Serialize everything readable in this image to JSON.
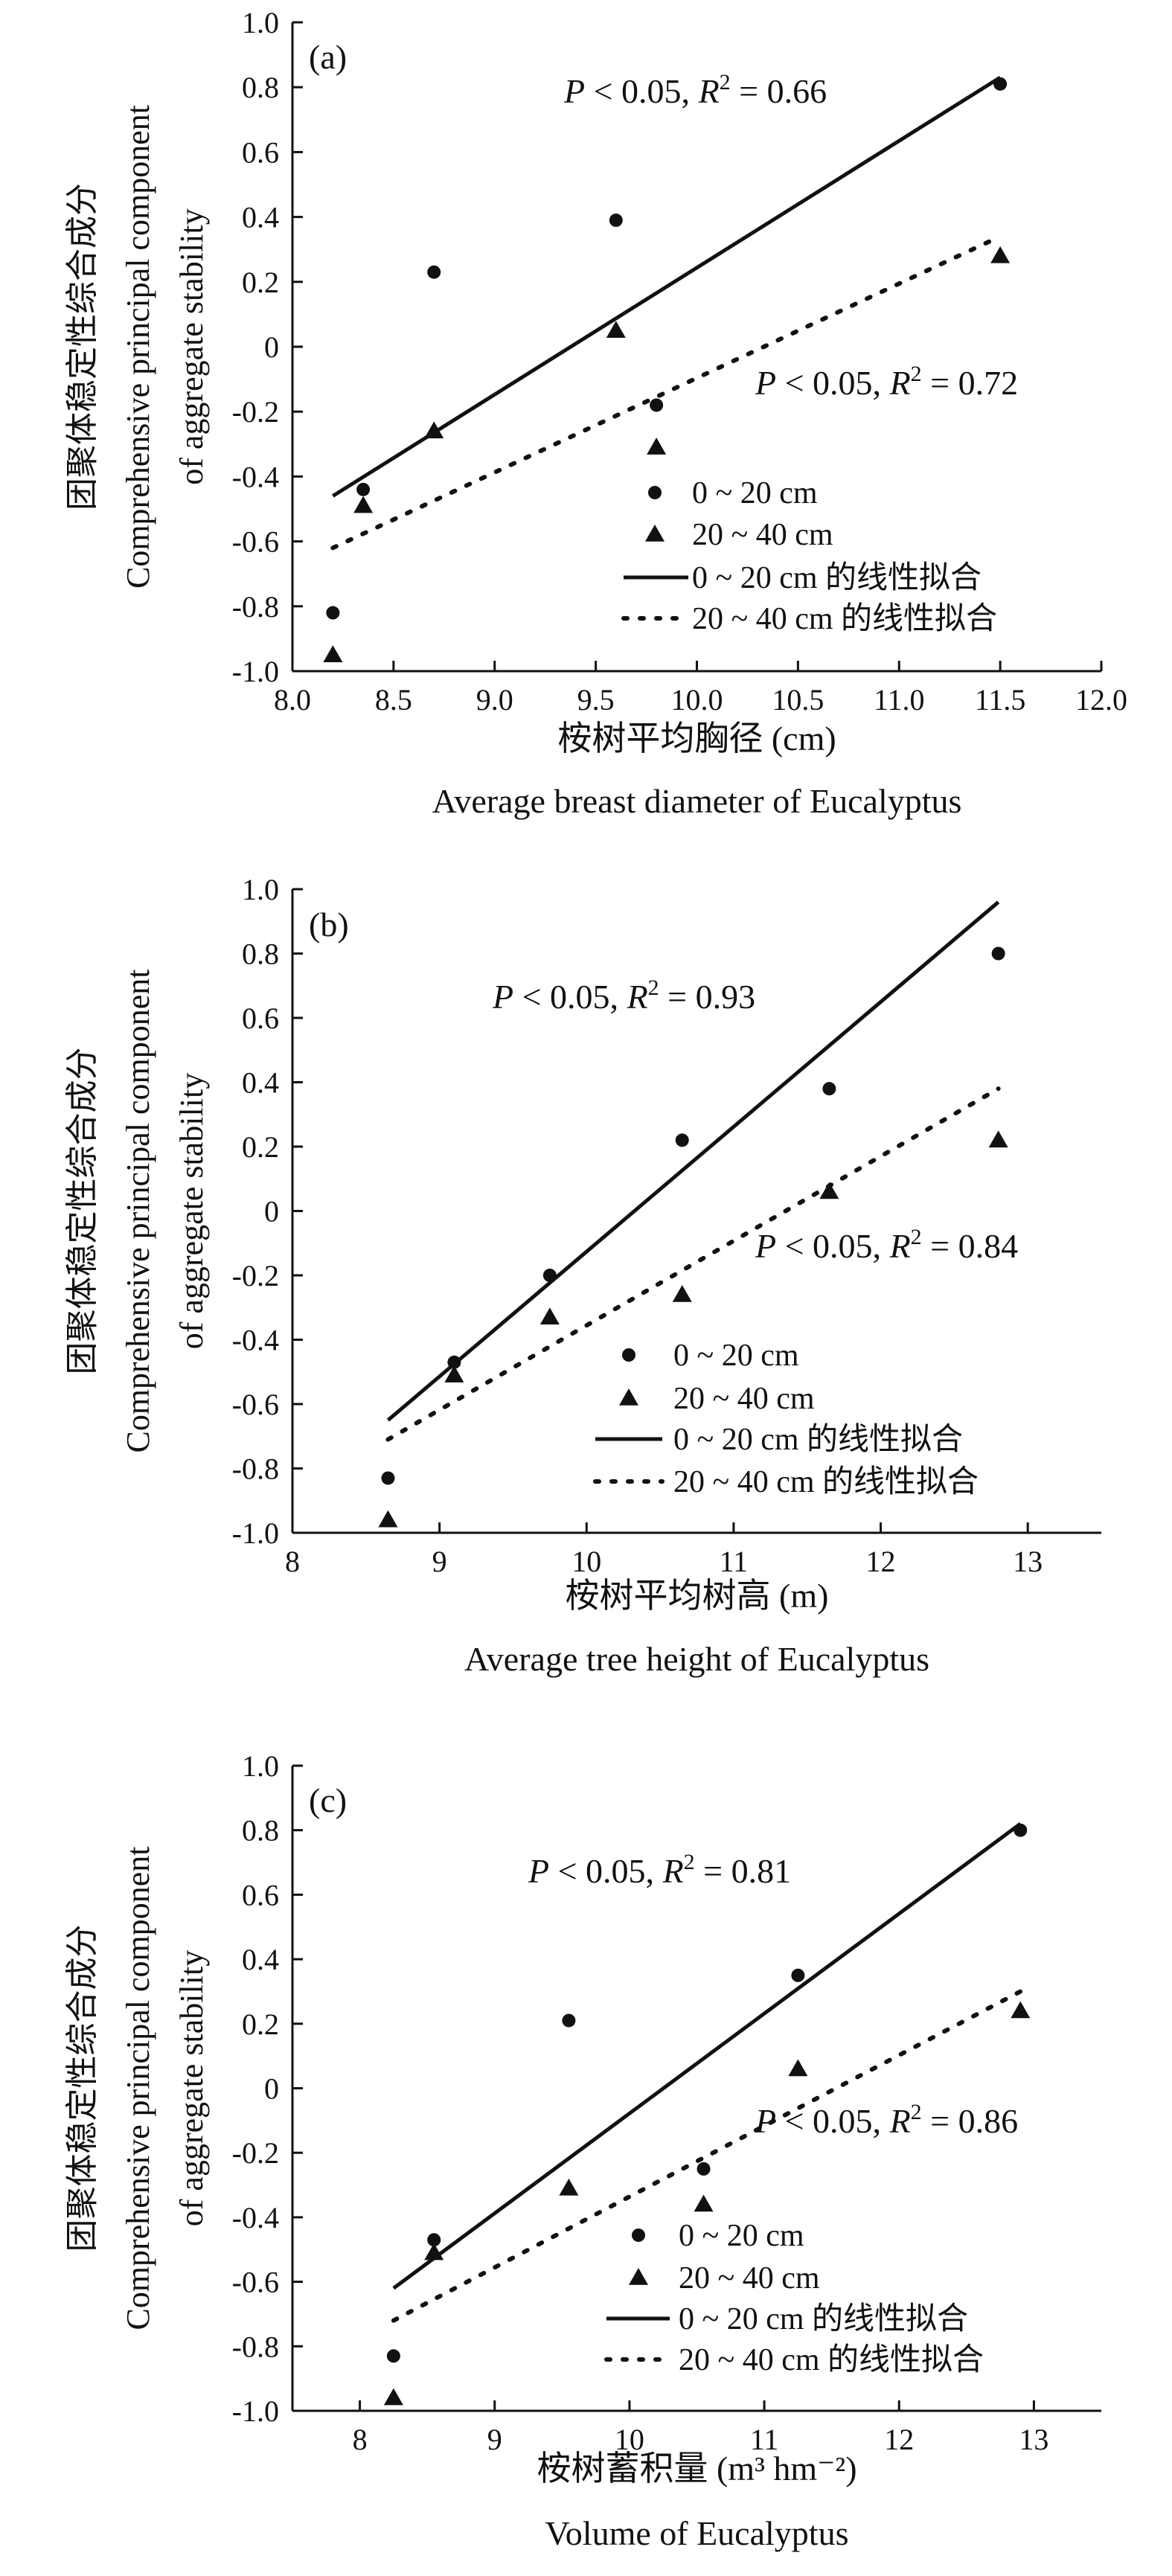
{
  "chart_data": [
    {
      "type": "scatter",
      "panel_label": "(a)",
      "xlabel_cn": "桉树平均胸径 (cm)",
      "xlabel_en": "Average breast diameter of Eucalyptus",
      "ylabel_cn": "团聚体稳定性综合成分",
      "ylabel_en_1": "Comprehensive principal component",
      "ylabel_en_2": "of aggregate stability",
      "xlim": [
        8.0,
        12.0
      ],
      "ylim": [
        -1.0,
        1.0
      ],
      "x_ticks": [
        "8.0",
        "8.5",
        "9.0",
        "9.5",
        "10.0",
        "10.5",
        "11.0",
        "11.5",
        "12.0"
      ],
      "y_ticks": [
        "1.0",
        "0.8",
        "0.6",
        "0.4",
        "0.2",
        "0",
        "-0.2",
        "-0.4",
        "-0.6",
        "-0.8",
        "-1.0"
      ],
      "series": [
        {
          "name": "0 ~ 20 cm",
          "marker": "circle",
          "points": [
            [
              8.2,
              -0.82
            ],
            [
              8.35,
              -0.44
            ],
            [
              8.7,
              0.23
            ],
            [
              9.6,
              0.39
            ],
            [
              9.8,
              -0.18
            ],
            [
              11.5,
              0.81
            ]
          ]
        },
        {
          "name": "20 ~ 40 cm",
          "marker": "triangle",
          "points": [
            [
              8.2,
              -0.95
            ],
            [
              8.35,
              -0.49
            ],
            [
              8.7,
              -0.26
            ],
            [
              9.6,
              0.05
            ],
            [
              9.8,
              -0.31
            ],
            [
              11.5,
              0.28
            ]
          ]
        }
      ],
      "fits": [
        {
          "name": "0 ~ 20 cm 的线性拟合",
          "style": "solid",
          "from": [
            8.2,
            -0.46
          ],
          "to": [
            11.5,
            0.83
          ]
        },
        {
          "name": "20 ~ 40 cm 的线性拟合",
          "style": "dotted",
          "from": [
            8.2,
            -0.62
          ],
          "to": [
            11.5,
            0.34
          ]
        }
      ],
      "annotations": [
        {
          "p": "P",
          "mid": " < 0.05, ",
          "r": "R",
          "sup": "2",
          "val": " = 0.66"
        },
        {
          "p": "P",
          "mid": " < 0.05, ",
          "r": "R",
          "sup": "2",
          "val": " = 0.72"
        }
      ]
    },
    {
      "type": "scatter",
      "panel_label": "(b)",
      "xlabel_cn": "桉树平均树高 (m)",
      "xlabel_en": "Average tree height of Eucalyptus",
      "ylabel_cn": "团聚体稳定性综合成分",
      "ylabel_en_1": "Comprehensive principal component",
      "ylabel_en_2": "of aggregate stability",
      "xlim": [
        8,
        13.5
      ],
      "ylim": [
        -1.0,
        1.0
      ],
      "x_ticks": [
        "8",
        "9",
        "10",
        "11",
        "12",
        "13"
      ],
      "y_ticks": [
        "1.0",
        "0.8",
        "0.6",
        "0.4",
        "0.2",
        "0",
        "-0.2",
        "-0.4",
        "-0.6",
        "-0.8",
        "-1.0"
      ],
      "series": [
        {
          "name": "0 ~ 20 cm",
          "marker": "circle",
          "points": [
            [
              8.65,
              -0.83
            ],
            [
              9.1,
              -0.47
            ],
            [
              9.75,
              -0.2
            ],
            [
              10.65,
              0.22
            ],
            [
              11.65,
              0.38
            ],
            [
              12.8,
              0.8
            ]
          ]
        },
        {
          "name": "20 ~ 40 cm",
          "marker": "triangle",
          "points": [
            [
              8.65,
              -0.96
            ],
            [
              9.1,
              -0.51
            ],
            [
              9.75,
              -0.33
            ],
            [
              10.65,
              -0.26
            ],
            [
              11.65,
              0.06
            ],
            [
              12.8,
              0.22
            ]
          ]
        }
      ],
      "fits": [
        {
          "name": "0 ~ 20 cm 的线性拟合",
          "style": "solid",
          "from": [
            8.65,
            -0.65
          ],
          "to": [
            12.8,
            0.96
          ]
        },
        {
          "name": "20 ~ 40 cm 的线性拟合",
          "style": "dotted",
          "from": [
            8.65,
            -0.71
          ],
          "to": [
            12.8,
            0.38
          ]
        }
      ],
      "annotations": [
        {
          "p": "P",
          "mid": " < 0.05, ",
          "r": "R",
          "sup": "2",
          "val": " = 0.93"
        },
        {
          "p": "P",
          "mid": " < 0.05, ",
          "r": "R",
          "sup": "2",
          "val": " = 0.84"
        }
      ]
    },
    {
      "type": "scatter",
      "panel_label": "(c)",
      "xlabel_cn": "桉树蓄积量 (m³ hm⁻²)",
      "xlabel_en": "Volume of Eucalyptus",
      "ylabel_cn": "团聚体稳定性综合成分",
      "ylabel_en_1": "Comprehensive principal component",
      "ylabel_en_2": "of aggregate stability",
      "xlim": [
        7.5,
        13.5
      ],
      "ylim": [
        -1.0,
        1.0
      ],
      "x_ticks": [
        "8",
        "9",
        "10",
        "11",
        "12",
        "13"
      ],
      "y_ticks": [
        "1.0",
        "0.8",
        "0.6",
        "0.4",
        "0.2",
        "0",
        "-0.2",
        "-0.4",
        "-0.6",
        "-0.8",
        "-1.0"
      ],
      "series": [
        {
          "name": "0 ~ 20 cm",
          "marker": "circle",
          "points": [
            [
              8.25,
              -0.83
            ],
            [
              8.55,
              -0.47
            ],
            [
              9.55,
              0.21
            ],
            [
              10.55,
              -0.25
            ],
            [
              11.25,
              0.35
            ],
            [
              12.9,
              0.8
            ]
          ]
        },
        {
          "name": "20 ~ 40 cm",
          "marker": "triangle",
          "points": [
            [
              8.25,
              -0.96
            ],
            [
              8.55,
              -0.51
            ],
            [
              9.55,
              -0.31
            ],
            [
              10.55,
              -0.36
            ],
            [
              11.25,
              0.06
            ],
            [
              12.9,
              0.24
            ]
          ]
        }
      ],
      "fits": [
        {
          "name": "0 ~ 20 cm 的线性拟合",
          "style": "solid",
          "from": [
            8.25,
            -0.62
          ],
          "to": [
            12.9,
            0.82
          ]
        },
        {
          "name": "20 ~ 40 cm 的线性拟合",
          "style": "dotted",
          "from": [
            8.25,
            -0.72
          ],
          "to": [
            12.9,
            0.3
          ]
        }
      ],
      "annotations": [
        {
          "p": "P",
          "mid": " < 0.05, ",
          "r": "R",
          "sup": "2",
          "val": " = 0.81"
        },
        {
          "p": "P",
          "mid": " < 0.05, ",
          "r": "R",
          "sup": "2",
          "val": " = 0.86"
        }
      ]
    }
  ],
  "legend": {
    "circle_label": "0 ~ 20 cm",
    "triangle_label": "20 ~ 40 cm",
    "solid_label": "0 ~ 20 cm 的线性拟合",
    "dotted_label": "20 ~ 40 cm 的线性拟合"
  },
  "colors": {
    "ink": "#111111",
    "background": "#ffffff"
  }
}
